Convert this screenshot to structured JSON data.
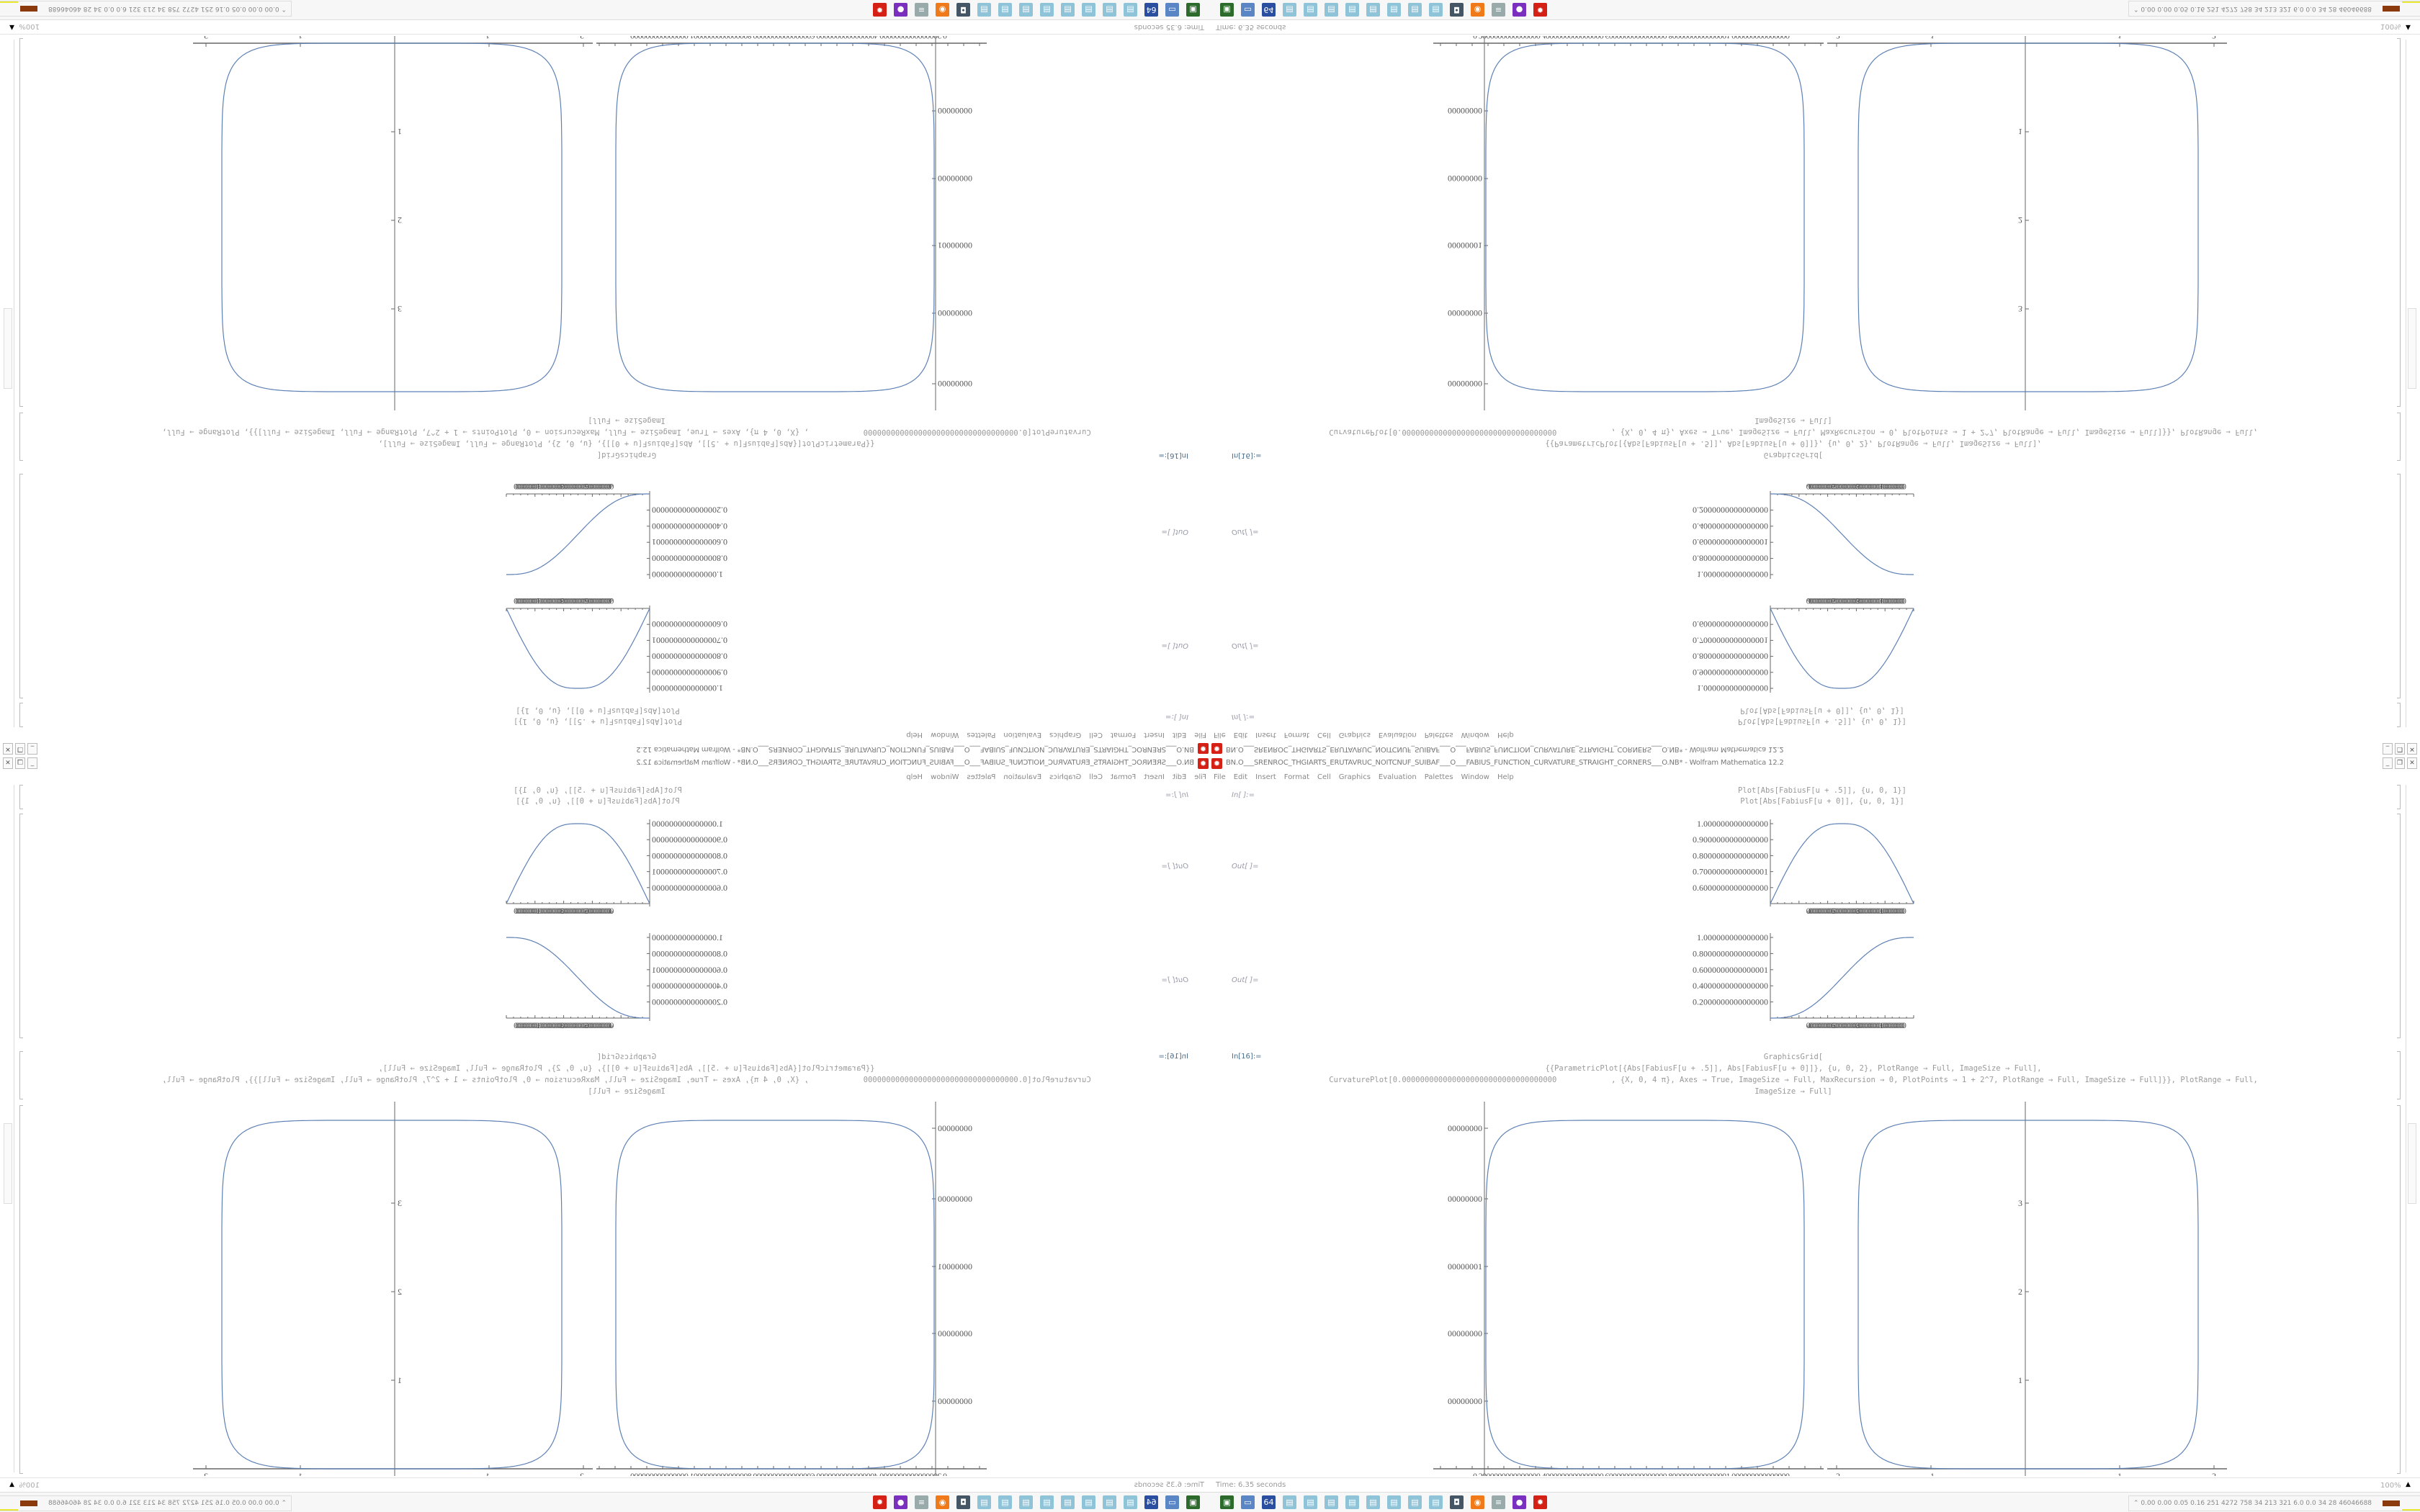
{
  "window": {
    "title": "BN.O___SRENROC_THGIARTS_ERUTAVRUC_NOITCNUF_SUIBAF___O___FABIUS_FUNCTION_CURVATURE_STRAIGHT_CORNERS___O.NB* - Wolfram Mathematica 12.2",
    "app_icon": "mathematica-gear-icon",
    "controls": {
      "minimize": "_",
      "maximize": "❐",
      "close": "✕"
    }
  },
  "menu": [
    "File",
    "Edit",
    "Insert",
    "Format",
    "Cell",
    "Graphics",
    "Evaluation",
    "Palettes",
    "Window",
    "Help"
  ],
  "cells": {
    "in_blank": "In[ ]:=",
    "out_blank": "Out[ ]=",
    "in16": "In[16]:=",
    "plot_code": [
      "Plot[Abs[FabiusF[u + .5]], {u, 0, 1}]",
      "Plot[Abs[FabiusF[u + 0]], {u, 0, 1}]"
    ],
    "grid_code": [
      "GraphicsGrid[",
      "{{ParametricPlot[{Abs[FabiusF[u + .5]], Abs[FabiusF[u + 0]]}, {u, 0, 2}, PlotRange → Full, ImageSize → Full],",
      "CurvaturePlot[0.0000000000000000000000000000000000            , {X, 0, 4 π}, Axes → True, ImageSize → Full, MaxRecursion → 0, PlotPoints → 1 + 2^7, PlotRange → Full, ImageSize → Full]}}, PlotRange → Full,",
      "ImageSize → Full]"
    ]
  },
  "plots": {
    "plot1": {
      "yticks": [
        "1.000000000000000",
        "0.9000000000000000",
        "0.8000000000000000",
        "0.7000000000000001",
        "0.6000000000000000"
      ],
      "xticks": "0.4000000000000000.6000000000000000.8000000000000001.000000000000000"
    },
    "plot2": {
      "yticks": [
        "1.000000000000000",
        "0.8000000000000000",
        "0.6000000000000001",
        "0.4000000000000000",
        "0.2000000000000000"
      ],
      "xticks": "0.4000000000000000.6000000000000000.8000000000000001.000000000000000"
    },
    "parametric": {
      "yticks": [
        "00000000",
        "00000000",
        "00000001",
        "00000000",
        "00000000"
      ],
      "xticks": "0.2000000000000000.4000000000000000.6000000000000000.8000000000000001.000000000000000"
    },
    "curvature": {
      "xticks": [
        "-2",
        "-1",
        "1",
        "2"
      ],
      "yticks": [
        "1",
        "2",
        "3"
      ]
    },
    "curve_color": "#5e81b5"
  },
  "status": {
    "time": "Time: 6.35 seconds",
    "zoom": "100%"
  },
  "taskbar": {
    "icons": [
      "mathematica-icon",
      "purple-app-icon",
      "notepad-scroll-icon",
      "firefox-icon",
      "webcam-icon",
      "notepad-icon",
      "notepad-icon",
      "notepad-icon",
      "notepad-icon",
      "notepad-icon",
      "notepad-icon",
      "notepad-icon",
      "notepad-icon",
      "floppy-64-icon",
      "monitor-icon",
      "terminal-icon"
    ],
    "stats": "0.00 0.00 0.05 0.16  251  4272  758   34   213   321   6.0   0.0   34   28  46046688"
  }
}
